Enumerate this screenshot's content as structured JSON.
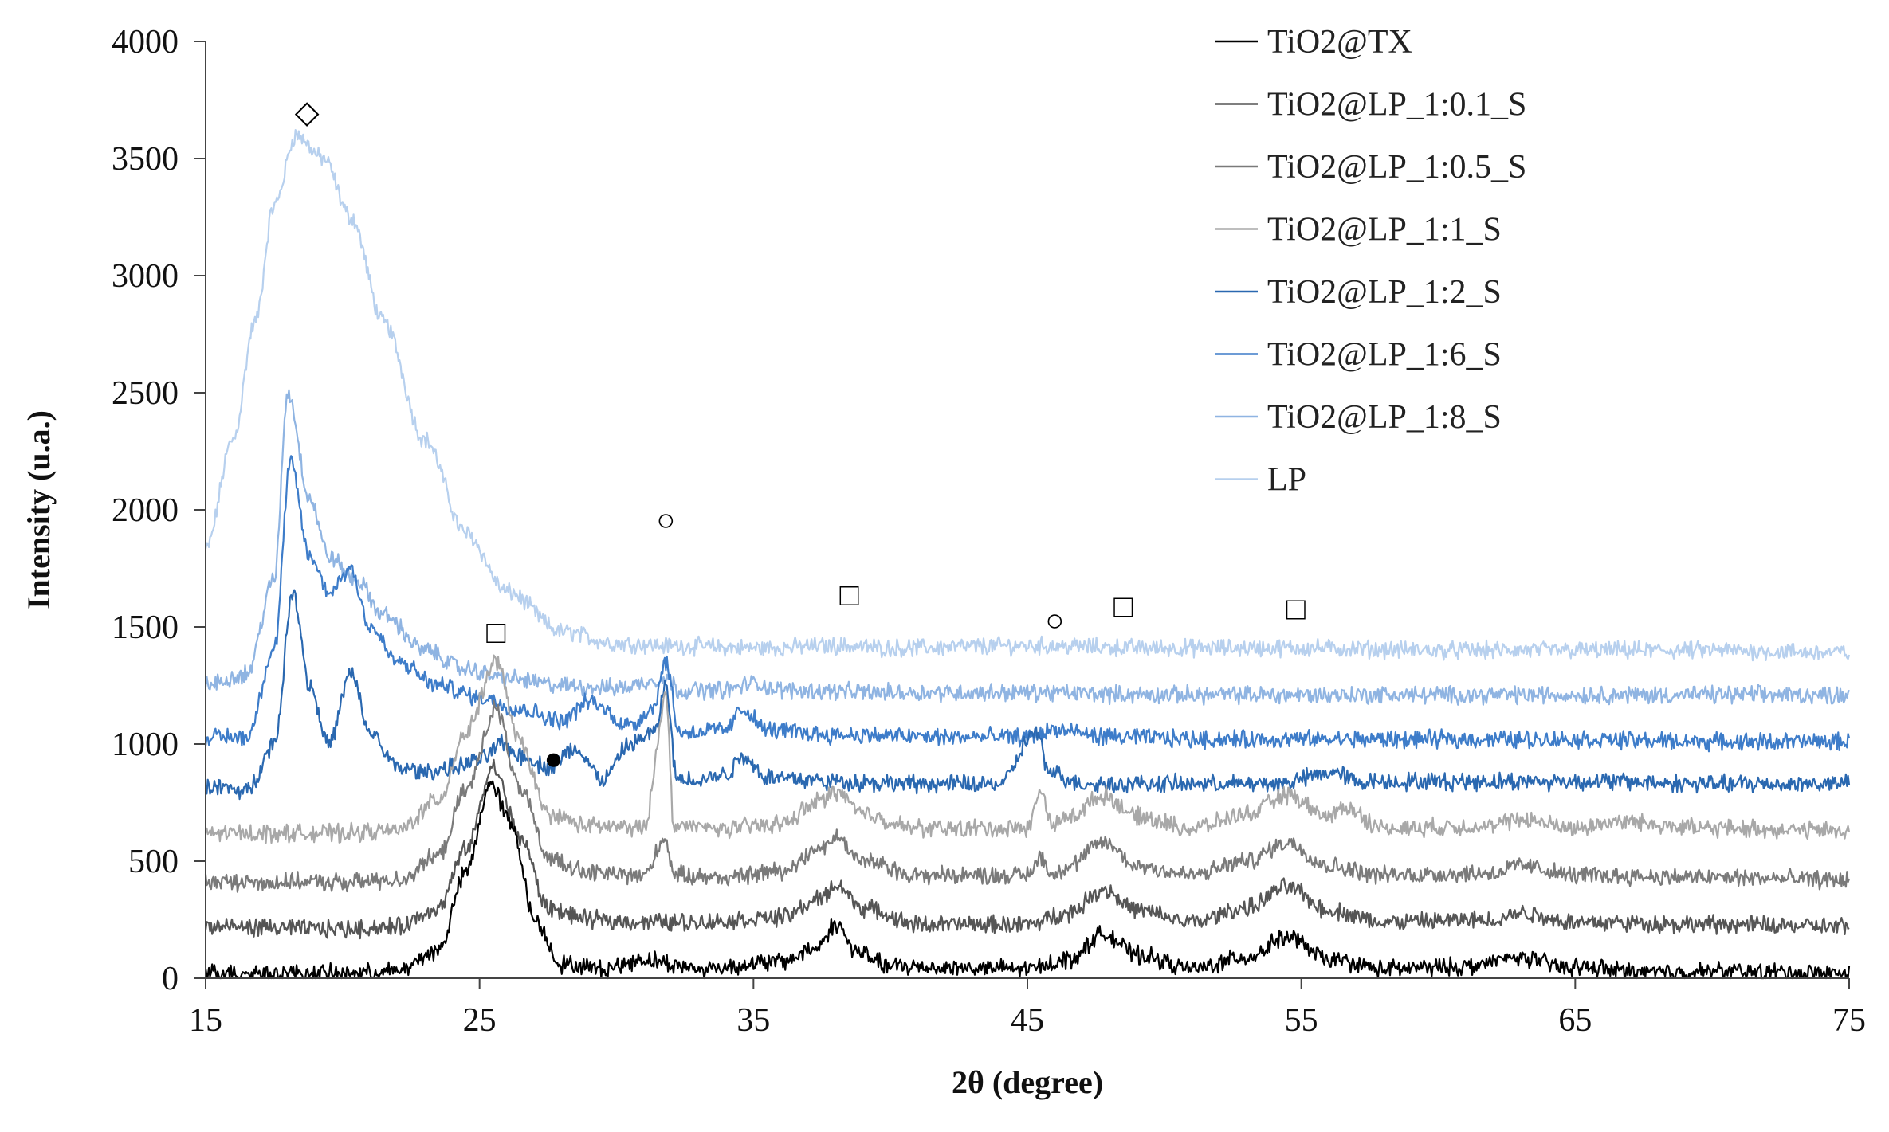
{
  "chart_data": {
    "type": "line",
    "xlabel": "2θ (degree)",
    "ylabel": "Intensity (u.a.)",
    "xlim": [
      15,
      75
    ],
    "ylim": [
      0,
      4000
    ],
    "x_ticks": [
      "15",
      "25",
      "35",
      "45",
      "55",
      "65",
      "75"
    ],
    "y_ticks": [
      "0",
      "500",
      "1000",
      "1500",
      "2000",
      "2500",
      "3000",
      "3500",
      "4000"
    ],
    "grid": false,
    "legend_position": "top-right",
    "series": [
      {
        "name": "TiO2@TX",
        "color": "#000000",
        "offset": 0,
        "points": [
          [
            15,
            25
          ],
          [
            20,
            20
          ],
          [
            22,
            30
          ],
          [
            23.5,
            120
          ],
          [
            24.5,
            450
          ],
          [
            25.4,
            830
          ],
          [
            26.2,
            650
          ],
          [
            27,
            250
          ],
          [
            28,
            60
          ],
          [
            29.5,
            40
          ],
          [
            31,
            80
          ],
          [
            33,
            40
          ],
          [
            36,
            70
          ],
          [
            37.3,
            130
          ],
          [
            38,
            230
          ],
          [
            38.8,
            110
          ],
          [
            40,
            50
          ],
          [
            45,
            40
          ],
          [
            46.5,
            80
          ],
          [
            47.8,
            190
          ],
          [
            49,
            100
          ],
          [
            51,
            40
          ],
          [
            53,
            90
          ],
          [
            54.5,
            175
          ],
          [
            56,
            80
          ],
          [
            58,
            40
          ],
          [
            61,
            50
          ],
          [
            63,
            90
          ],
          [
            64.5,
            50
          ],
          [
            68,
            25
          ],
          [
            70,
            30
          ],
          [
            75,
            20
          ]
        ]
      },
      {
        "name": "TiO2@LP_1:0.1_S",
        "color": "#555555",
        "offset": 200,
        "points": [
          [
            15,
            220
          ],
          [
            20,
            210
          ],
          [
            22,
            220
          ],
          [
            23.5,
            300
          ],
          [
            24.5,
            550
          ],
          [
            25.5,
            900
          ],
          [
            26.5,
            600
          ],
          [
            27.5,
            300
          ],
          [
            29,
            250
          ],
          [
            31,
            240
          ],
          [
            33,
            240
          ],
          [
            36,
            260
          ],
          [
            37.5,
            340
          ],
          [
            38,
            400
          ],
          [
            39,
            300
          ],
          [
            41,
            230
          ],
          [
            45,
            230
          ],
          [
            46.5,
            280
          ],
          [
            47.8,
            380
          ],
          [
            49,
            290
          ],
          [
            51,
            240
          ],
          [
            53,
            300
          ],
          [
            54.5,
            390
          ],
          [
            56,
            290
          ],
          [
            58,
            240
          ],
          [
            62,
            250
          ],
          [
            63,
            280
          ],
          [
            65,
            240
          ],
          [
            70,
            230
          ],
          [
            75,
            220
          ]
        ]
      },
      {
        "name": "TiO2@LP_1:0.5_S",
        "color": "#7a7a7a",
        "offset": 400,
        "points": [
          [
            15,
            410
          ],
          [
            20,
            410
          ],
          [
            22,
            420
          ],
          [
            23.5,
            520
          ],
          [
            24.5,
            800
          ],
          [
            25.6,
            1150
          ],
          [
            26.5,
            800
          ],
          [
            27.5,
            520
          ],
          [
            29,
            450
          ],
          [
            31,
            440
          ],
          [
            31.8,
            600
          ],
          [
            32.1,
            440
          ],
          [
            34,
            430
          ],
          [
            36,
            460
          ],
          [
            37.5,
            560
          ],
          [
            38,
            600
          ],
          [
            39,
            500
          ],
          [
            41,
            440
          ],
          [
            45,
            440
          ],
          [
            45.5,
            520
          ],
          [
            45.9,
            440
          ],
          [
            46.5,
            480
          ],
          [
            47.8,
            580
          ],
          [
            49,
            480
          ],
          [
            51,
            440
          ],
          [
            53,
            500
          ],
          [
            54.5,
            580
          ],
          [
            56,
            480
          ],
          [
            58,
            440
          ],
          [
            62,
            450
          ],
          [
            63,
            480
          ],
          [
            65,
            440
          ],
          [
            70,
            430
          ],
          [
            75,
            420
          ]
        ]
      },
      {
        "name": "TiO2@LP_1:1_S",
        "color": "#a8a8a8",
        "offset": 600,
        "points": [
          [
            15,
            620
          ],
          [
            20,
            620
          ],
          [
            22,
            630
          ],
          [
            23.5,
            760
          ],
          [
            24.5,
            1050
          ],
          [
            25.6,
            1350
          ],
          [
            26.5,
            1000
          ],
          [
            27.5,
            700
          ],
          [
            29,
            650
          ],
          [
            31,
            640
          ],
          [
            31.8,
            1200
          ],
          [
            32.1,
            650
          ],
          [
            34,
            640
          ],
          [
            36,
            660
          ],
          [
            37.5,
            760
          ],
          [
            38,
            800
          ],
          [
            39,
            700
          ],
          [
            41,
            640
          ],
          [
            45,
            640
          ],
          [
            45.5,
            800
          ],
          [
            45.9,
            650
          ],
          [
            46.5,
            690
          ],
          [
            47.8,
            780
          ],
          [
            49,
            690
          ],
          [
            51,
            640
          ],
          [
            53,
            700
          ],
          [
            54.5,
            780
          ],
          [
            56,
            690
          ],
          [
            56.6,
            730
          ],
          [
            58,
            640
          ],
          [
            62,
            650
          ],
          [
            63,
            680
          ],
          [
            65,
            640
          ],
          [
            66.5,
            670
          ],
          [
            70,
            640
          ],
          [
            75,
            630
          ]
        ]
      },
      {
        "name": "TiO2@LP_1:2_S",
        "color": "#2a68b0",
        "offset": 800,
        "points": [
          [
            15,
            820
          ],
          [
            16.5,
            800
          ],
          [
            17.5,
            1000
          ],
          [
            18.2,
            1650
          ],
          [
            18.8,
            1250
          ],
          [
            19.5,
            1000
          ],
          [
            20.3,
            1300
          ],
          [
            21,
            1050
          ],
          [
            22,
            900
          ],
          [
            23,
            880
          ],
          [
            24,
            900
          ],
          [
            25,
            930
          ],
          [
            25.8,
            1000
          ],
          [
            26.5,
            950
          ],
          [
            27.5,
            900
          ],
          [
            28.5,
            980
          ],
          [
            29.5,
            850
          ],
          [
            30.5,
            1000
          ],
          [
            31.4,
            1050
          ],
          [
            31.8,
            1250
          ],
          [
            32.2,
            850
          ],
          [
            33,
            850
          ],
          [
            34,
            870
          ],
          [
            34.6,
            950
          ],
          [
            35.5,
            860
          ],
          [
            38,
            840
          ],
          [
            41,
            830
          ],
          [
            44,
            830
          ],
          [
            45.3,
            1050
          ],
          [
            45.8,
            880
          ],
          [
            47,
            830
          ],
          [
            50,
            830
          ],
          [
            54,
            830
          ],
          [
            56.3,
            880
          ],
          [
            57,
            840
          ],
          [
            62,
            840
          ],
          [
            66,
            840
          ],
          [
            70,
            830
          ],
          [
            75,
            830
          ]
        ]
      },
      {
        "name": "TiO2@LP_1:6_S",
        "color": "#3d7cc9",
        "offset": 1000,
        "points": [
          [
            15,
            1030
          ],
          [
            16.5,
            1030
          ],
          [
            17.5,
            1400
          ],
          [
            18.1,
            2200
          ],
          [
            18.8,
            1800
          ],
          [
            19.5,
            1650
          ],
          [
            20.3,
            1750
          ],
          [
            21,
            1500
          ],
          [
            22,
            1350
          ],
          [
            23.5,
            1250
          ],
          [
            25,
            1200
          ],
          [
            26.5,
            1150
          ],
          [
            28,
            1100
          ],
          [
            29,
            1180
          ],
          [
            30.5,
            1080
          ],
          [
            31.3,
            1150
          ],
          [
            31.8,
            1350
          ],
          [
            32.3,
            1050
          ],
          [
            34,
            1060
          ],
          [
            34.6,
            1150
          ],
          [
            35.5,
            1060
          ],
          [
            38,
            1040
          ],
          [
            42,
            1030
          ],
          [
            45,
            1030
          ],
          [
            46,
            1060
          ],
          [
            48,
            1030
          ],
          [
            52,
            1020
          ],
          [
            55,
            1020
          ],
          [
            58,
            1020
          ],
          [
            65,
            1020
          ],
          [
            70,
            1010
          ],
          [
            75,
            1010
          ]
        ]
      },
      {
        "name": "TiO2@LP_1:8_S",
        "color": "#8fb4e2",
        "offset": 1200,
        "points": [
          [
            15,
            1250
          ],
          [
            16.5,
            1300
          ],
          [
            17.5,
            1700
          ],
          [
            18,
            2500
          ],
          [
            18.8,
            2050
          ],
          [
            19.5,
            1800
          ],
          [
            20.5,
            1700
          ],
          [
            21.5,
            1550
          ],
          [
            23,
            1400
          ],
          [
            24.5,
            1320
          ],
          [
            26,
            1280
          ],
          [
            28,
            1250
          ],
          [
            30,
            1240
          ],
          [
            31.8,
            1280
          ],
          [
            32.3,
            1230
          ],
          [
            34,
            1230
          ],
          [
            35,
            1260
          ],
          [
            36,
            1230
          ],
          [
            40,
            1220
          ],
          [
            45,
            1220
          ],
          [
            50,
            1210
          ],
          [
            55,
            1210
          ],
          [
            60,
            1210
          ],
          [
            65,
            1210
          ],
          [
            70,
            1210
          ],
          [
            75,
            1210
          ]
        ]
      },
      {
        "name": "LP",
        "color": "#b7d0ee",
        "offset": 1400,
        "points": [
          [
            15,
            1830
          ],
          [
            16,
            2300
          ],
          [
            16.8,
            2800
          ],
          [
            17.5,
            3300
          ],
          [
            18.3,
            3600
          ],
          [
            19.3,
            3500
          ],
          [
            20.3,
            3250
          ],
          [
            21.5,
            2800
          ],
          [
            23,
            2300
          ],
          [
            24.5,
            1900
          ],
          [
            26,
            1650
          ],
          [
            28,
            1480
          ],
          [
            30,
            1430
          ],
          [
            32,
            1420
          ],
          [
            35,
            1410
          ],
          [
            38,
            1420
          ],
          [
            40,
            1410
          ],
          [
            45,
            1420
          ],
          [
            50,
            1410
          ],
          [
            55,
            1410
          ],
          [
            60,
            1400
          ],
          [
            65,
            1400
          ],
          [
            70,
            1400
          ],
          [
            75,
            1390
          ]
        ]
      }
    ],
    "annotations": [
      {
        "symbol": "◇",
        "x": 18.7,
        "y": 3700
      },
      {
        "symbol": "□",
        "x": 25.6,
        "y": 1480
      },
      {
        "symbol": "●",
        "x": 27.7,
        "y": 940
      },
      {
        "symbol": "○",
        "x": 31.8,
        "y": 1960
      },
      {
        "symbol": "□",
        "x": 38.5,
        "y": 1640
      },
      {
        "symbol": "○",
        "x": 46.0,
        "y": 1530
      },
      {
        "symbol": "□",
        "x": 48.5,
        "y": 1590
      },
      {
        "symbol": "□",
        "x": 54.8,
        "y": 1580
      }
    ]
  }
}
